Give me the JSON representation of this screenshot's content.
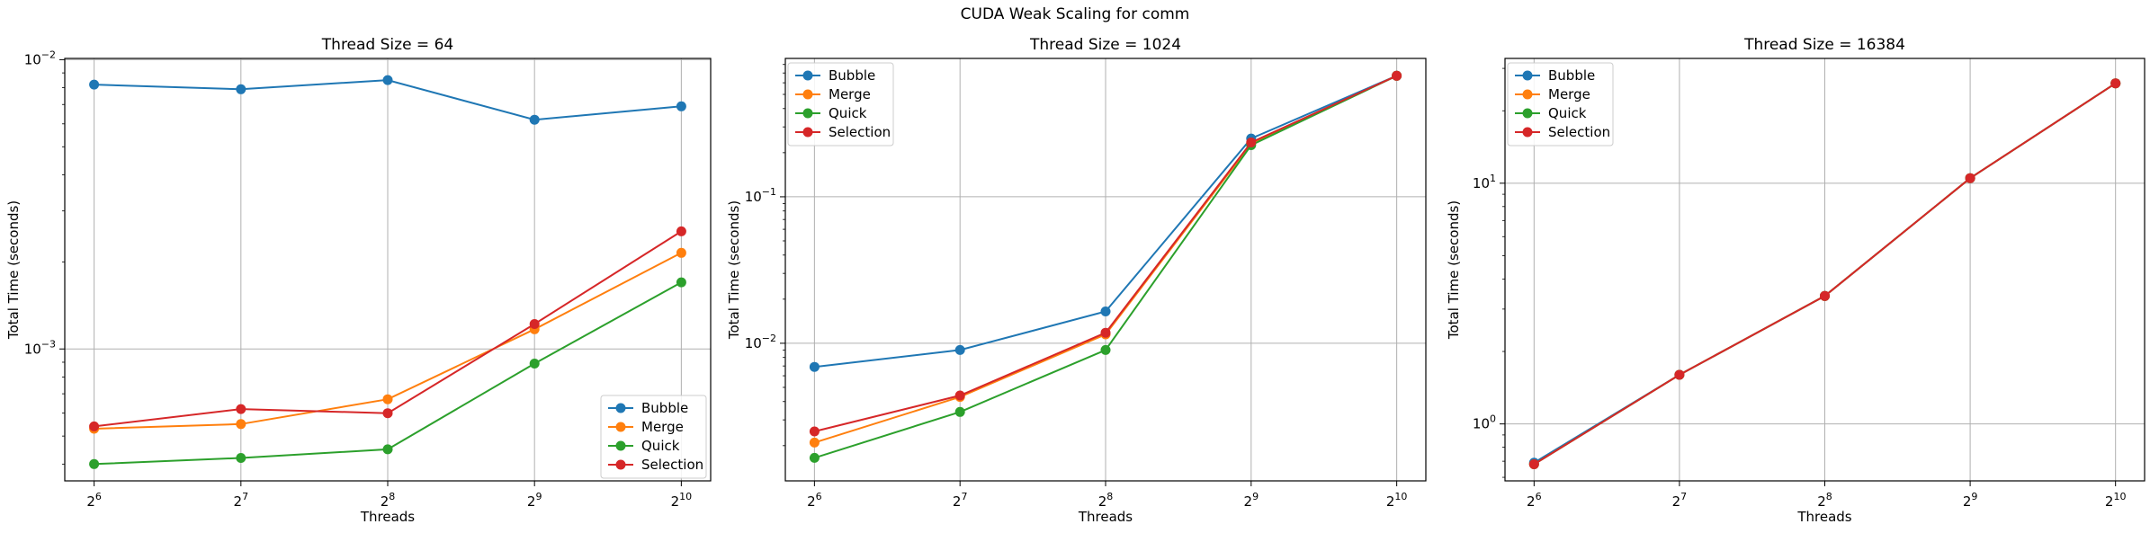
{
  "figure": {
    "suptitle": "CUDA Weak Scaling for comm"
  },
  "colors": {
    "Bubble": "#1f77b4",
    "Merge": "#ff7f0e",
    "Quick": "#2ca02c",
    "Selection": "#d62728"
  },
  "chart_data": [
    {
      "type": "line",
      "title": "Thread Size = 64",
      "xlabel": "Threads",
      "ylabel": "Total Time (seconds)",
      "x_scale": "log2",
      "y_scale": "log10",
      "x": [
        64,
        128,
        256,
        512,
        1024
      ],
      "x_tick_labels": [
        {
          "base": "2",
          "exp": "6"
        },
        {
          "base": "2",
          "exp": "7"
        },
        {
          "base": "2",
          "exp": "8"
        },
        {
          "base": "2",
          "exp": "9"
        },
        {
          "base": "2",
          "exp": "10"
        }
      ],
      "y_ticks": [
        {
          "value": 0.001,
          "base": "10",
          "exp": "−3"
        },
        {
          "value": 0.01,
          "base": "10",
          "exp": "−2"
        }
      ],
      "ylim": [
        0.00035,
        0.0101
      ],
      "grid": true,
      "legend_position": "lower-right",
      "series": [
        {
          "name": "Bubble",
          "values": [
            0.0082,
            0.0079,
            0.0085,
            0.0062,
            0.0069
          ]
        },
        {
          "name": "Merge",
          "values": [
            0.00053,
            0.00055,
            0.00067,
            0.00117,
            0.00215
          ]
        },
        {
          "name": "Quick",
          "values": [
            0.0004,
            0.00042,
            0.00045,
            0.00089,
            0.0017
          ]
        },
        {
          "name": "Selection",
          "values": [
            0.00054,
            0.00062,
            0.0006,
            0.00122,
            0.00255
          ]
        }
      ]
    },
    {
      "type": "line",
      "title": "Thread Size = 1024",
      "xlabel": "Threads",
      "ylabel": "Total Time (seconds)",
      "x_scale": "log2",
      "y_scale": "log10",
      "x": [
        64,
        128,
        256,
        512,
        1024
      ],
      "x_tick_labels": [
        {
          "base": "2",
          "exp": "6"
        },
        {
          "base": "2",
          "exp": "7"
        },
        {
          "base": "2",
          "exp": "8"
        },
        {
          "base": "2",
          "exp": "9"
        },
        {
          "base": "2",
          "exp": "10"
        }
      ],
      "y_ticks": [
        {
          "value": 0.01,
          "base": "10",
          "exp": "−2"
        },
        {
          "value": 0.1,
          "base": "10",
          "exp": "−1"
        }
      ],
      "ylim": [
        0.00115,
        0.88
      ],
      "grid": true,
      "legend_position": "upper-left",
      "series": [
        {
          "name": "Bubble",
          "values": [
            0.0069,
            0.009,
            0.0165,
            0.25,
            0.67
          ]
        },
        {
          "name": "Merge",
          "values": [
            0.0021,
            0.0043,
            0.0115,
            0.23,
            0.67
          ]
        },
        {
          "name": "Quick",
          "values": [
            0.00165,
            0.0034,
            0.009,
            0.225,
            0.67
          ]
        },
        {
          "name": "Selection",
          "values": [
            0.0025,
            0.0044,
            0.0118,
            0.235,
            0.67
          ]
        }
      ]
    },
    {
      "type": "line",
      "title": "Thread Size = 16384",
      "xlabel": "Threads",
      "ylabel": "Total Time (seconds)",
      "x_scale": "log2",
      "y_scale": "log10",
      "x": [
        64,
        128,
        256,
        512,
        1024
      ],
      "x_tick_labels": [
        {
          "base": "2",
          "exp": "6"
        },
        {
          "base": "2",
          "exp": "7"
        },
        {
          "base": "2",
          "exp": "8"
        },
        {
          "base": "2",
          "exp": "9"
        },
        {
          "base": "2",
          "exp": "10"
        }
      ],
      "y_ticks": [
        {
          "value": 1,
          "base": "10",
          "exp": "0"
        },
        {
          "value": 10,
          "base": "10",
          "exp": "1"
        }
      ],
      "ylim": [
        0.58,
        33
      ],
      "grid": true,
      "legend_position": "upper-left",
      "series": [
        {
          "name": "Bubble",
          "values": [
            0.69,
            1.6,
            3.4,
            10.5,
            26
          ]
        },
        {
          "name": "Merge",
          "values": [
            0.68,
            1.6,
            3.4,
            10.5,
            26
          ]
        },
        {
          "name": "Quick",
          "values": [
            0.68,
            1.6,
            3.4,
            10.5,
            26
          ]
        },
        {
          "name": "Selection",
          "values": [
            0.68,
            1.6,
            3.4,
            10.5,
            26
          ]
        }
      ]
    }
  ]
}
